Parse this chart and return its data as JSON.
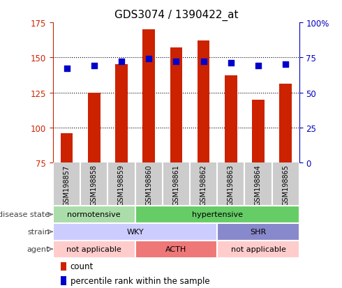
{
  "title": "GDS3074 / 1390422_at",
  "samples": [
    "GSM198857",
    "GSM198858",
    "GSM198859",
    "GSM198860",
    "GSM198861",
    "GSM198862",
    "GSM198863",
    "GSM198864",
    "GSM198865"
  ],
  "bar_values": [
    96,
    125,
    145,
    170,
    157,
    162,
    137,
    120,
    131
  ],
  "dot_values": [
    67,
    69,
    72,
    74,
    72,
    72,
    71,
    69,
    70
  ],
  "ylim_left": [
    75,
    175
  ],
  "ylim_right": [
    0,
    100
  ],
  "yticks_left": [
    75,
    100,
    125,
    150,
    175
  ],
  "yticks_right": [
    0,
    25,
    50,
    75,
    100
  ],
  "bar_color": "#cc2200",
  "dot_color": "#0000cc",
  "bar_bottom": 75,
  "hgrid_lines": [
    100,
    125,
    150
  ],
  "tick_label_bg": "#cccccc",
  "left_axis_color": "#cc2200",
  "right_axis_color": "#0000bb",
  "annotation_rows": [
    {
      "label": "disease state",
      "segments": [
        {
          "text": "normotensive",
          "start": 0,
          "end": 3,
          "color": "#aaddaa"
        },
        {
          "text": "hypertensive",
          "start": 3,
          "end": 9,
          "color": "#66cc66"
        }
      ]
    },
    {
      "label": "strain",
      "segments": [
        {
          "text": "WKY",
          "start": 0,
          "end": 6,
          "color": "#ccccff"
        },
        {
          "text": "SHR",
          "start": 6,
          "end": 9,
          "color": "#8888cc"
        }
      ]
    },
    {
      "label": "agent",
      "segments": [
        {
          "text": "not applicable",
          "start": 0,
          "end": 3,
          "color": "#ffcccc"
        },
        {
          "text": "ACTH",
          "start": 3,
          "end": 6,
          "color": "#ee7777"
        },
        {
          "text": "not applicable",
          "start": 6,
          "end": 9,
          "color": "#ffcccc"
        }
      ]
    }
  ],
  "legend_items": [
    {
      "label": "count",
      "color": "#cc2200"
    },
    {
      "label": "percentile rank within the sample",
      "color": "#0000cc"
    }
  ]
}
